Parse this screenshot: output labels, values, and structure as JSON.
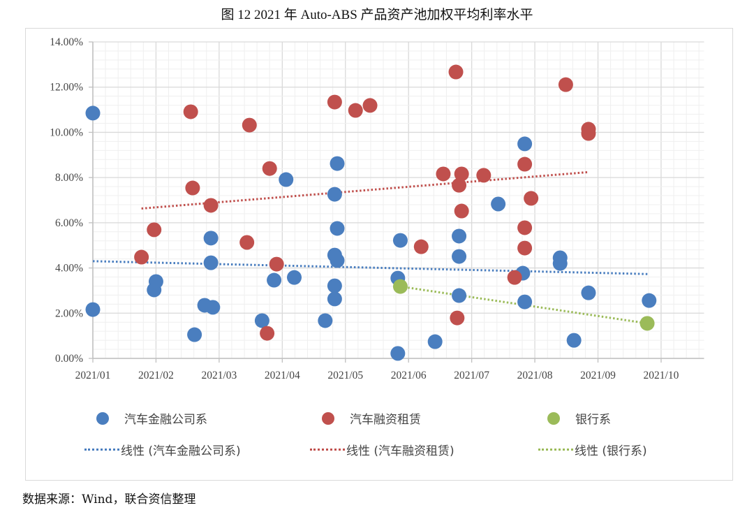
{
  "title": "图 12   2021 年 Auto-ABS 产品资产池加权平均利率水平",
  "source": "数据来源：Wind，联合资信整理",
  "colors": {
    "auto_finance": "#4a7ebf",
    "auto_leasing": "#c0504d",
    "bank": "#9bbb59",
    "grid_major": "#d9d9d9",
    "grid_minor": "#efefef"
  },
  "legend": {
    "s1": "汽车金融公司系",
    "s2": "汽车融资租赁",
    "s3": "银行系",
    "t1": "线性 (汽车金融公司系)",
    "t2": "线性 (汽车融资租赁)",
    "t3": "线性 (银行系)"
  },
  "chart_data": {
    "type": "scatter",
    "title": "2021 年 Auto-ABS 产品资产池加权平均利率水平",
    "xlabel": "",
    "ylabel": "",
    "x_ticks": [
      "2021/01",
      "2021/02",
      "2021/03",
      "2021/04",
      "2021/05",
      "2021/06",
      "2021/07",
      "2021/08",
      "2021/09",
      "2021/10"
    ],
    "y_ticks": [
      "0.00%",
      "2.00%",
      "4.00%",
      "6.00%",
      "8.00%",
      "10.00%",
      "12.00%",
      "14.00%"
    ],
    "ylim": [
      0,
      14
    ],
    "xlim_months_from_2021_01": [
      0,
      9.68
    ],
    "grid": true,
    "legend_position": "bottom",
    "x_unit": "months since 2021/01",
    "y_unit": "%",
    "series": [
      {
        "name": "汽车金融公司系",
        "color": "#4a7ebf",
        "points": [
          [
            0.0,
            10.85
          ],
          [
            0.0,
            2.16
          ],
          [
            0.97,
            3.03
          ],
          [
            1.0,
            3.4
          ],
          [
            1.61,
            1.05
          ],
          [
            1.77,
            2.35
          ],
          [
            1.9,
            2.26
          ],
          [
            1.87,
            5.32
          ],
          [
            1.87,
            4.23
          ],
          [
            2.68,
            1.67
          ],
          [
            2.87,
            3.46
          ],
          [
            3.06,
            7.91
          ],
          [
            3.19,
            3.58
          ],
          [
            3.68,
            1.67
          ],
          [
            3.83,
            7.26
          ],
          [
            3.87,
            8.62
          ],
          [
            3.87,
            5.75
          ],
          [
            3.83,
            4.57
          ],
          [
            3.87,
            4.33
          ],
          [
            3.83,
            3.21
          ],
          [
            3.83,
            2.63
          ],
          [
            4.87,
            5.22
          ],
          [
            4.83,
            3.55
          ],
          [
            4.83,
            0.22
          ],
          [
            5.42,
            0.74
          ],
          [
            5.8,
            5.41
          ],
          [
            5.8,
            4.51
          ],
          [
            5.8,
            2.78
          ],
          [
            6.42,
            6.83
          ],
          [
            6.84,
            9.49
          ],
          [
            6.81,
            3.77
          ],
          [
            6.84,
            2.5
          ],
          [
            7.4,
            4.45
          ],
          [
            7.4,
            4.2
          ],
          [
            7.85,
            2.9
          ],
          [
            7.62,
            0.8
          ],
          [
            8.81,
            2.56
          ]
        ]
      },
      {
        "name": "汽车融资租赁",
        "color": "#c0504d",
        "points": [
          [
            0.77,
            4.48
          ],
          [
            0.97,
            5.69
          ],
          [
            1.55,
            10.91
          ],
          [
            1.58,
            7.54
          ],
          [
            1.87,
            6.77
          ],
          [
            2.48,
            10.32
          ],
          [
            2.44,
            5.13
          ],
          [
            2.8,
            8.4
          ],
          [
            2.91,
            4.17
          ],
          [
            2.76,
            1.11
          ],
          [
            3.83,
            11.34
          ],
          [
            4.16,
            10.97
          ],
          [
            4.39,
            11.19
          ],
          [
            5.2,
            4.94
          ],
          [
            5.55,
            8.16
          ],
          [
            5.75,
            12.67
          ],
          [
            5.84,
            8.16
          ],
          [
            5.8,
            7.66
          ],
          [
            5.84,
            6.52
          ],
          [
            6.19,
            8.1
          ],
          [
            5.77,
            1.79
          ],
          [
            6.84,
            8.59
          ],
          [
            6.84,
            5.78
          ],
          [
            6.84,
            4.88
          ],
          [
            6.94,
            7.08
          ],
          [
            6.68,
            3.58
          ],
          [
            7.49,
            12.11
          ],
          [
            7.85,
            10.14
          ],
          [
            7.85,
            9.95
          ]
        ]
      },
      {
        "name": "银行系",
        "color": "#9bbb59",
        "points": [
          [
            4.87,
            3.18
          ],
          [
            8.78,
            1.55
          ]
        ]
      }
    ],
    "trendlines": [
      {
        "name": "线性 (汽车金融公司系)",
        "color": "#4a7ebf",
        "from": [
          0.0,
          4.3
        ],
        "to": [
          8.81,
          3.73
        ]
      },
      {
        "name": "线性 (汽车融资租赁)",
        "color": "#c0504d",
        "from": [
          0.77,
          6.63
        ],
        "to": [
          7.85,
          8.24
        ]
      },
      {
        "name": "线性 (银行系)",
        "color": "#9bbb59",
        "from": [
          4.87,
          3.18
        ],
        "to": [
          8.78,
          1.55
        ]
      }
    ]
  }
}
